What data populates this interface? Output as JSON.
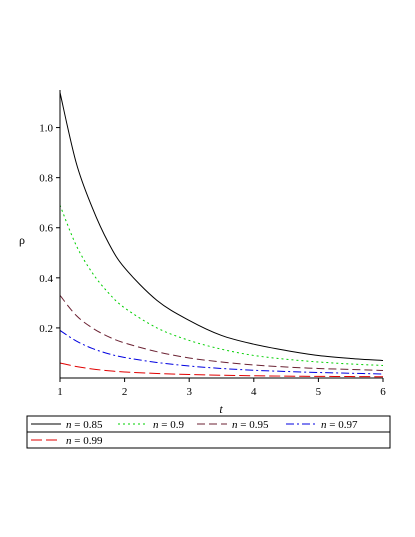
{
  "chart_data": {
    "type": "line",
    "title": "",
    "xlabel": "t",
    "ylabel": "ρ",
    "xlim": [
      1,
      6
    ],
    "ylim": [
      0,
      1.15
    ],
    "x_ticks": [
      1,
      2,
      3,
      4,
      5,
      6
    ],
    "y_ticks": [
      0.2,
      0.4,
      0.6,
      0.8,
      1.0
    ],
    "y_tick_labels": [
      "0.2",
      "0.4",
      "0.6",
      "0.8",
      "1.0"
    ],
    "grid": false,
    "legend_position": "bottom",
    "x": [
      1,
      1.25,
      1.5,
      1.75,
      2,
      2.5,
      3,
      3.5,
      4,
      4.5,
      5,
      5.5,
      6
    ],
    "series": [
      {
        "name": "n = 0.85",
        "legend_var": "n",
        "legend_value": " = 0.85",
        "color": "#000000",
        "dash": "solid",
        "values": [
          1.14,
          0.86,
          0.68,
          0.54,
          0.44,
          0.31,
          0.23,
          0.17,
          0.135,
          0.11,
          0.09,
          0.078,
          0.07
        ]
      },
      {
        "name": "n = 0.9",
        "legend_var": "n",
        "legend_value": " = 0.9",
        "color": "#00d000",
        "dash": "dot",
        "values": [
          0.69,
          0.53,
          0.42,
          0.34,
          0.28,
          0.2,
          0.15,
          0.115,
          0.09,
          0.075,
          0.064,
          0.056,
          0.05
        ]
      },
      {
        "name": "n = 0.95",
        "legend_var": "n",
        "legend_value": " = 0.95",
        "color": "#6b2233",
        "dash": "dash",
        "values": [
          0.33,
          0.25,
          0.2,
          0.165,
          0.14,
          0.105,
          0.08,
          0.064,
          0.052,
          0.044,
          0.038,
          0.034,
          0.03
        ]
      },
      {
        "name": "n = 0.97",
        "legend_var": "n",
        "legend_value": " = 0.97",
        "color": "#0000e0",
        "dash": "dashdot",
        "values": [
          0.19,
          0.148,
          0.118,
          0.097,
          0.082,
          0.062,
          0.048,
          0.038,
          0.031,
          0.026,
          0.022,
          0.019,
          0.016
        ]
      },
      {
        "name": "n = 0.99",
        "legend_var": "n",
        "legend_value": " = 0.99",
        "color": "#e00000",
        "dash": "longdash",
        "values": [
          0.06,
          0.046,
          0.036,
          0.029,
          0.024,
          0.018,
          0.014,
          0.011,
          0.009,
          0.0075,
          0.0065,
          0.0058,
          0.005
        ]
      }
    ]
  }
}
